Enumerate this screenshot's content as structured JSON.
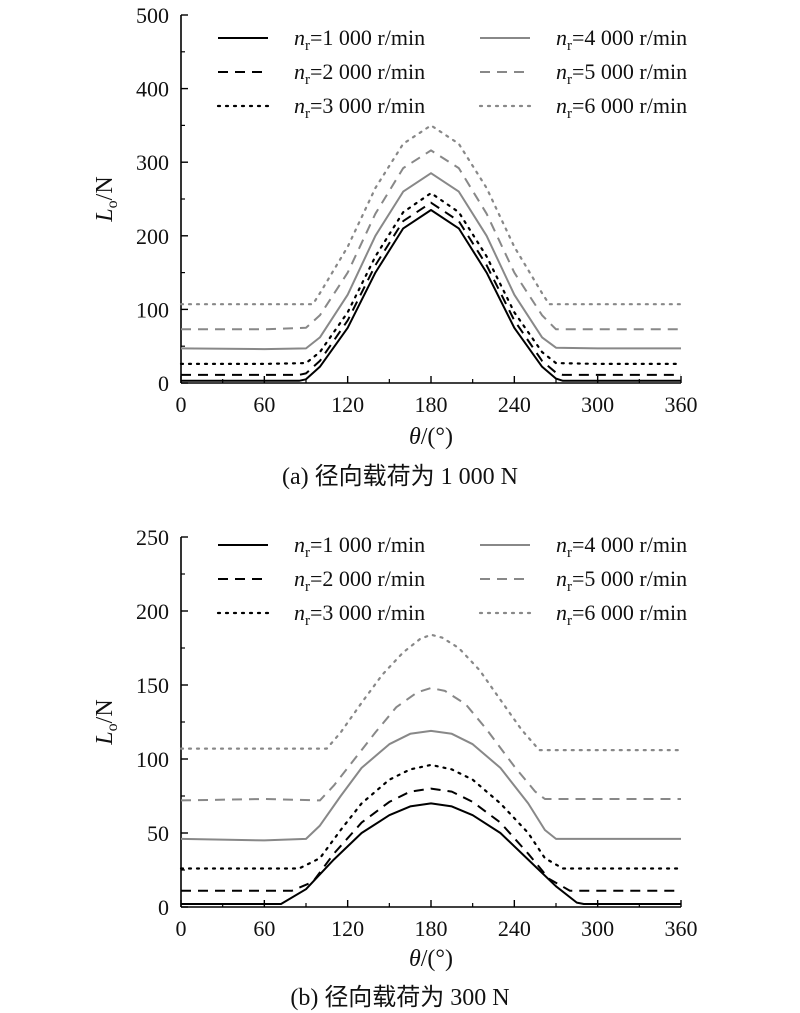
{
  "chart_data": [
    {
      "type": "line",
      "caption": "(a) 径向载荷为 1 000 N",
      "xlabel": {
        "sym": "θ",
        "rest": "/(°)"
      },
      "ylabel": {
        "sym": "L",
        "sub": "o",
        "rest": "/N"
      },
      "xlim": [
        0,
        360
      ],
      "ylim": [
        0,
        500
      ],
      "xticks": [
        "0",
        "60",
        "120",
        "180",
        "240",
        "300",
        "360"
      ],
      "yticks": [
        "0",
        "100",
        "200",
        "300",
        "400",
        "500"
      ],
      "legend_position": "top",
      "series": [
        {
          "sym": "n",
          "sub": "r",
          "name": "=1 000 r/min",
          "style": "solid",
          "color": "#000000",
          "x": [
            0,
            60,
            85,
            90,
            100,
            120,
            140,
            160,
            180,
            200,
            220,
            240,
            260,
            270,
            275,
            300,
            360
          ],
          "y": [
            3,
            3,
            3,
            5,
            22,
            75,
            150,
            210,
            235,
            210,
            150,
            75,
            22,
            6,
            3,
            3,
            3
          ]
        },
        {
          "sym": "n",
          "sub": "r",
          "name": "=2 000 r/min",
          "style": "dashed",
          "color": "#000000",
          "x": [
            0,
            60,
            85,
            90,
            100,
            120,
            140,
            160,
            180,
            200,
            220,
            240,
            260,
            270,
            275,
            300,
            360
          ],
          "y": [
            11,
            11,
            11,
            13,
            30,
            85,
            160,
            220,
            245,
            220,
            160,
            85,
            30,
            14,
            11,
            11,
            11
          ]
        },
        {
          "sym": "n",
          "sub": "r",
          "name": "=3 000 r/min",
          "style": "dotted",
          "color": "#000000",
          "x": [
            0,
            60,
            90,
            100,
            120,
            140,
            160,
            180,
            200,
            220,
            240,
            260,
            270,
            300,
            360
          ],
          "y": [
            26,
            26,
            27,
            42,
            96,
            172,
            232,
            258,
            232,
            172,
            96,
            42,
            27,
            26,
            26
          ]
        },
        {
          "sym": "n",
          "sub": "r",
          "name": "=4 000 r/min",
          "style": "solid",
          "color": "#888888",
          "x": [
            0,
            60,
            90,
            100,
            120,
            140,
            160,
            180,
            200,
            220,
            240,
            260,
            270,
            300,
            360
          ],
          "y": [
            47,
            46,
            47,
            62,
            120,
            200,
            260,
            285,
            260,
            200,
            120,
            62,
            48,
            47,
            47
          ]
        },
        {
          "sym": "n",
          "sub": "r",
          "name": "=5 000 r/min",
          "style": "dashed",
          "color": "#888888",
          "x": [
            0,
            60,
            90,
            100,
            120,
            140,
            160,
            180,
            200,
            220,
            240,
            260,
            270,
            300,
            360
          ],
          "y": [
            73,
            73,
            75,
            92,
            150,
            230,
            292,
            316,
            292,
            230,
            150,
            92,
            73,
            73,
            73
          ]
        },
        {
          "sym": "n",
          "sub": "r",
          "name": "=6 000 r/min",
          "style": "dotted",
          "color": "#888888",
          "x": [
            0,
            60,
            95,
            100,
            120,
            140,
            160,
            180,
            200,
            220,
            240,
            260,
            265,
            300,
            360
          ],
          "y": [
            107,
            107,
            107,
            122,
            185,
            265,
            325,
            350,
            325,
            265,
            185,
            122,
            107,
            107,
            107
          ]
        }
      ]
    },
    {
      "type": "line",
      "caption": "(b) 径向载荷为 300 N",
      "xlabel": {
        "sym": "θ",
        "rest": "/(°)"
      },
      "ylabel": {
        "sym": "L",
        "sub": "o",
        "rest": "/N"
      },
      "xlim": [
        0,
        360
      ],
      "ylim": [
        0,
        250
      ],
      "xticks": [
        "0",
        "60",
        "120",
        "180",
        "240",
        "300",
        "360"
      ],
      "yticks": [
        "0",
        "50",
        "100",
        "150",
        "200",
        "250"
      ],
      "legend_position": "top",
      "series": [
        {
          "sym": "n",
          "sub": "r",
          "name": "=1 000 r/min",
          "style": "solid",
          "color": "#000000",
          "x": [
            0,
            60,
            72,
            90,
            110,
            130,
            150,
            165,
            180,
            195,
            210,
            230,
            250,
            270,
            285,
            290,
            360
          ],
          "y": [
            2,
            2,
            2,
            12,
            32,
            50,
            62,
            68,
            70,
            68,
            62,
            50,
            32,
            14,
            3,
            2,
            2
          ]
        },
        {
          "sym": "n",
          "sub": "r",
          "name": "=2 000 r/min",
          "style": "dashed",
          "color": "#000000",
          "x": [
            0,
            60,
            80,
            95,
            110,
            130,
            150,
            165,
            180,
            195,
            210,
            230,
            250,
            265,
            280,
            360
          ],
          "y": [
            11,
            11,
            11,
            17,
            36,
            57,
            71,
            78,
            80,
            78,
            71,
            57,
            36,
            19,
            11,
            11
          ]
        },
        {
          "sym": "n",
          "sub": "r",
          "name": "=3 000 r/min",
          "style": "dotted",
          "color": "#000000",
          "x": [
            0,
            60,
            85,
            100,
            115,
            130,
            150,
            165,
            180,
            195,
            210,
            230,
            250,
            262,
            275,
            360
          ],
          "y": [
            26,
            26,
            26,
            33,
            52,
            70,
            86,
            93,
            96,
            93,
            86,
            70,
            50,
            33,
            26,
            26
          ]
        },
        {
          "sym": "n",
          "sub": "r",
          "name": "=4 000 r/min",
          "style": "solid",
          "color": "#888888",
          "x": [
            0,
            60,
            90,
            100,
            115,
            130,
            150,
            165,
            180,
            195,
            210,
            230,
            250,
            262,
            270,
            360
          ],
          "y": [
            46,
            45,
            46,
            55,
            75,
            94,
            110,
            117,
            119,
            117,
            110,
            94,
            70,
            52,
            46,
            46
          ]
        },
        {
          "sym": "n",
          "sub": "r",
          "name": "=5 000 r/min",
          "style": "dashed",
          "color": "#888888",
          "x": [
            0,
            60,
            100,
            110,
            125,
            140,
            155,
            170,
            180,
            190,
            205,
            220,
            240,
            255,
            262,
            360
          ],
          "y": [
            72,
            73,
            72,
            82,
            100,
            118,
            135,
            145,
            148,
            146,
            137,
            120,
            95,
            78,
            73,
            73
          ]
        },
        {
          "sym": "n",
          "sub": "r",
          "name": "=6 000 r/min",
          "style": "dotted",
          "color": "#888888",
          "x": [
            0,
            60,
            105,
            115,
            130,
            145,
            160,
            172,
            180,
            188,
            200,
            215,
            230,
            245,
            258,
            360
          ],
          "y": [
            107,
            107,
            107,
            118,
            138,
            157,
            172,
            181,
            184,
            182,
            175,
            160,
            140,
            120,
            106,
            106
          ]
        }
      ]
    }
  ]
}
